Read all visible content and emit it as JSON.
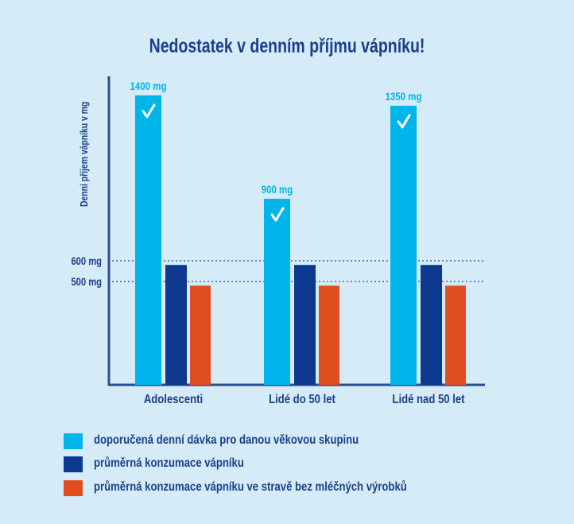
{
  "chart_data": {
    "type": "bar",
    "title": "Nedostatek v denním příjmu vápníku!",
    "ylabel": "Denní příjem vápníku v mg",
    "categories": [
      "Adolescenti",
      "Lidé do 50 let",
      "Lidé nad 50 let"
    ],
    "series": [
      {
        "name": "doporučená denní dávka pro danou věkovou skupinu",
        "values": [
          1400,
          900,
          1350
        ],
        "labels": [
          "1400 mg",
          "900 mg",
          "1350 mg"
        ],
        "color": "#00b5ea",
        "marker": "check-icon"
      },
      {
        "name": "průměrná konzumace vápníku",
        "values": [
          580,
          580,
          580
        ],
        "color": "#0d3a8e"
      },
      {
        "name": "průměrná konzumace vápníku  ve stravě bez mléčných výrobků",
        "values": [
          480,
          480,
          480
        ],
        "color": "#e04e1f"
      }
    ],
    "reference_lines": [
      {
        "value": 600,
        "label": "600 mg"
      },
      {
        "value": 500,
        "label": "500 mg"
      }
    ],
    "legend_position": "bottom-left",
    "grid": false
  },
  "colors": {
    "background": "#d5ebf7",
    "text": "#1b3f8b",
    "axis": "#2a4d8f"
  }
}
